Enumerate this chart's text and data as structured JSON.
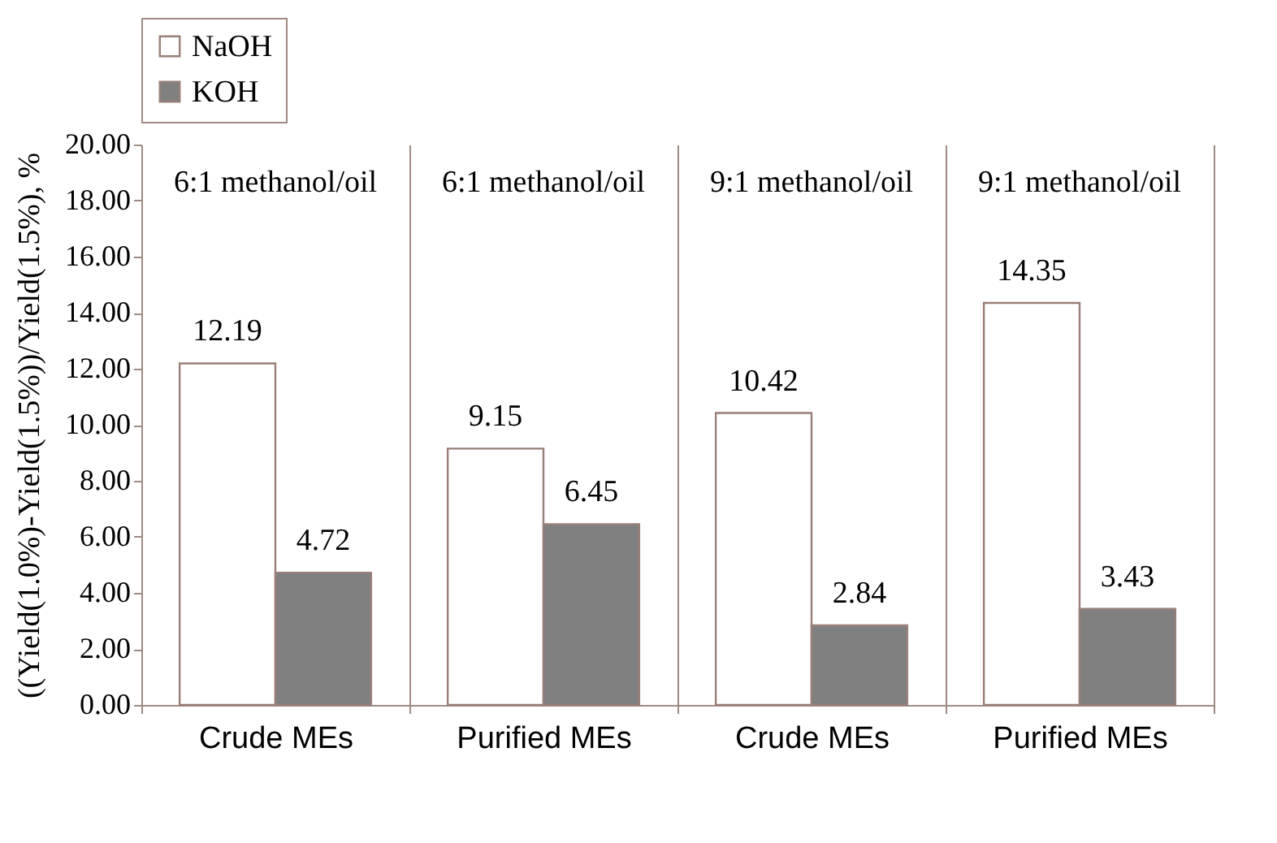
{
  "chart_data": {
    "type": "bar",
    "ylabel": "((Yield(1.0%)-Yield(1.5%))/Yield(1.5%), %",
    "categories": [
      "Crude MEs",
      "Purified MEs",
      "Crude MEs",
      "Purified MEs"
    ],
    "series": [
      {
        "name": "NaOH",
        "color": "#ffffff",
        "values": [
          12.19,
          9.15,
          10.42,
          14.35
        ]
      },
      {
        "name": "KOH",
        "color": "#808080",
        "values": [
          4.72,
          6.45,
          2.84,
          3.43
        ]
      }
    ],
    "ylim": [
      0,
      20
    ],
    "yticks": [
      {
        "value": 0,
        "label": "0.00"
      },
      {
        "value": 2,
        "label": "2.00"
      },
      {
        "value": 4,
        "label": "4.00"
      },
      {
        "value": 6,
        "label": "6.00"
      },
      {
        "value": 8,
        "label": "8.00"
      },
      {
        "value": 10,
        "label": "10.00"
      },
      {
        "value": 12,
        "label": "12.00"
      },
      {
        "value": 14,
        "label": "14.00"
      },
      {
        "value": 16,
        "label": "16.00"
      },
      {
        "value": 18,
        "label": "18.00"
      },
      {
        "value": 20,
        "label": "20.00"
      }
    ],
    "annotations": [
      "6:1 methanol/oil",
      "6:1 methanol/oil",
      "9:1 methanol/oil",
      "9:1 methanol/oil"
    ],
    "data_labels": true,
    "grid": "x",
    "legend": "top"
  }
}
